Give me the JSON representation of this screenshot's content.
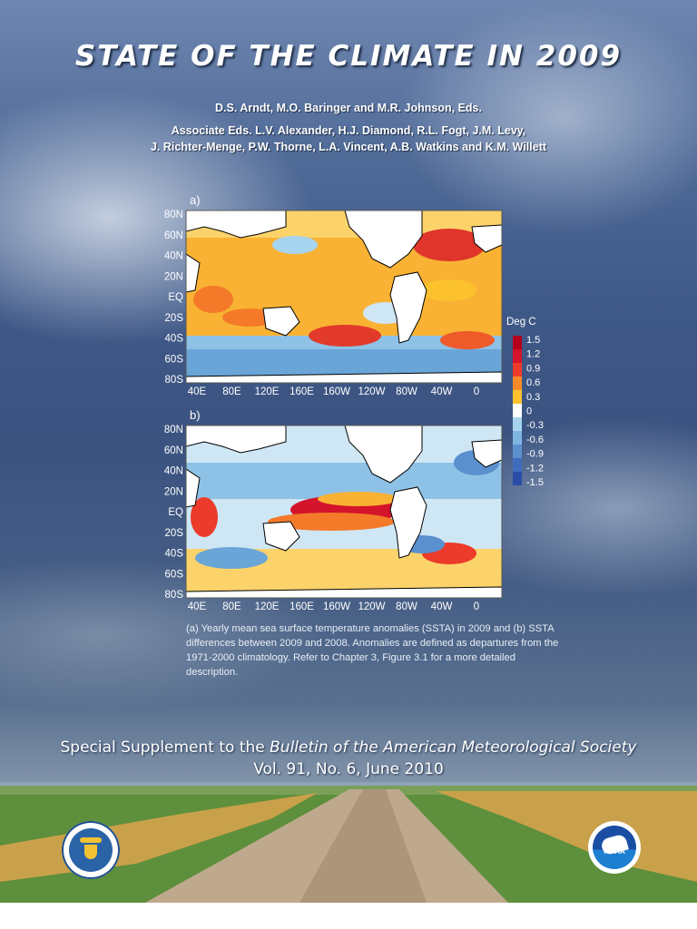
{
  "cover": {
    "title": "STATE OF THE CLIMATE IN 2009",
    "editors": "D.S. Arndt, M.O. Baringer and M.R. Johnson, Eds.",
    "associate_editors_line1": "Associate Eds. L.V. Alexander, H.J. Diamond, R.L. Fogt, J.M. Levy,",
    "associate_editors_line2": "J. Richter-Menge, P.W. Thorne, L.A. Vincent, A.B. Watkins and K.M. Willett",
    "caption": "(a) Yearly mean sea surface temperature anomalies (SSTA) in 2009 and (b) SSTA differences between 2009 and 2008. Anomalies are defined as departures from the 1971-2000 climatology.  Refer to Chapter 3, Figure 3.1 for a more detailed description.",
    "supplement_prefix": "Special Supplement to the ",
    "supplement_journal": "Bulletin of the American Meteorological Society",
    "volume": "Vol. 91, No. 6, June 2010",
    "noaa_label": "NOAA",
    "colors": {
      "sky_top": "#6f87b0",
      "sky_mid": "#3e5887",
      "field_green": "#5a8a3a",
      "road": "#b8a48c"
    },
    "icons": [
      "department-of-commerce-seal",
      "noaa-logo"
    ]
  },
  "chart_data": [
    {
      "type": "heatmap",
      "panel_label": "a)",
      "y_tick_labels": [
        "80N",
        "60N",
        "40N",
        "20N",
        "EQ",
        "20S",
        "40S",
        "60S",
        "80S"
      ],
      "x_tick_labels": [
        "40E",
        "80E",
        "120E",
        "160E",
        "160W",
        "120W",
        "80W",
        "40W",
        "0"
      ],
      "colorbar_title": "Deg C",
      "colorbar_tick_labels": [
        "1.5",
        "1.2",
        "0.9",
        "0.6",
        "0.3",
        "0",
        "-0.3",
        "-0.6",
        "-0.9",
        "-1.2",
        "-1.5"
      ],
      "colorbar_levels": [
        1.5,
        1.2,
        0.9,
        0.6,
        0.3,
        0,
        -0.3,
        -0.6,
        -0.9,
        -1.2,
        -1.5
      ],
      "colorbar_colors": [
        "#b2001e",
        "#d4142a",
        "#ec3b2a",
        "#f78a28",
        "#fbc22e",
        "#ffffff",
        "#a7d4ef",
        "#7fb6e2",
        "#5b90cf",
        "#3f6cbc",
        "#2a4ea6"
      ]
    },
    {
      "type": "heatmap",
      "panel_label": "b)",
      "y_tick_labels": [
        "80N",
        "60N",
        "40N",
        "20N",
        "EQ",
        "20S",
        "40S",
        "60S",
        "80S"
      ],
      "x_tick_labels": [
        "40E",
        "80E",
        "120E",
        "160E",
        "160W",
        "120W",
        "80W",
        "40W",
        "0"
      ],
      "colorbar_shared": true
    }
  ]
}
